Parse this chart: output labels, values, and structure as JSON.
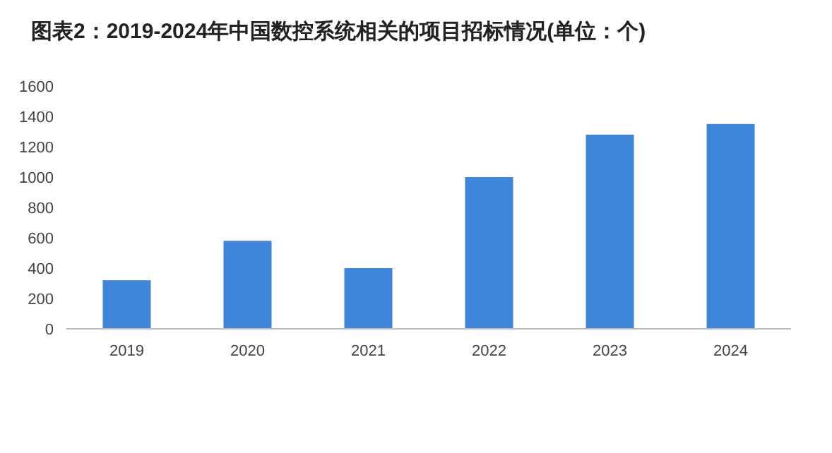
{
  "chart_data": {
    "type": "bar",
    "title": "图表2：2019-2024年中国数控系统相关的项目招标情况(单位：个)",
    "categories": [
      "2019",
      "2020",
      "2021",
      "2022",
      "2023",
      "2024"
    ],
    "series": [
      {
        "color": "#3f85dc",
        "values": [
          320,
          580,
          400,
          1000,
          1280,
          1350
        ]
      }
    ],
    "ylim": [
      0,
      1600
    ],
    "yticks": [
      0,
      200,
      400,
      600,
      800,
      1000,
      1200,
      1400,
      1600
    ]
  }
}
